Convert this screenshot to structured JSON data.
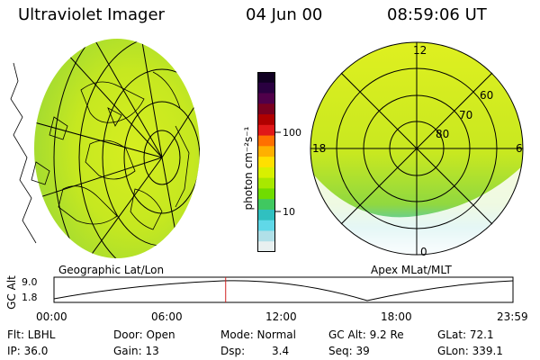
{
  "header": {
    "title": "Ultraviolet Imager",
    "date": "04 Jun 00",
    "time": "08:59:06 UT"
  },
  "left_panel": {
    "caption": "Geographic Lat/Lon"
  },
  "right_panel": {
    "caption": "Apex MLat/MLT",
    "mlt_labels": {
      "top": "12",
      "left": "18",
      "right": "6",
      "bottom": "0"
    },
    "lat_labels": [
      "60",
      "70",
      "80"
    ]
  },
  "colorbar": {
    "unit_label": "photon cm⁻²s⁻¹",
    "tick_labels": [
      "100",
      "10"
    ],
    "colors": [
      "#110022",
      "#2a0040",
      "#50004a",
      "#7a0020",
      "#b00000",
      "#e01818",
      "#ff7000",
      "#ffb000",
      "#ffe000",
      "#d8f000",
      "#a8e800",
      "#70dc00",
      "#40c860",
      "#30c0c0",
      "#60d8e8",
      "#b0e0e8",
      "#e8f0f0"
    ]
  },
  "timeline": {
    "axis_label": "GC Alt",
    "y_ticks": [
      "9.0",
      "1.8"
    ],
    "x_ticks": [
      "00:00",
      "06:00",
      "12:00",
      "18:00",
      "23:59"
    ],
    "current_time_fraction": 0.374
  },
  "info": {
    "row1": {
      "flt": "Flt: LBHL",
      "door": "Door: Open",
      "mode": "Mode: Normal",
      "gcalt": "GC Alt: 9.2 Re",
      "glat": "GLat: 72.1"
    },
    "row2": {
      "ip": "IP: 36.0",
      "gain": "Gain: 13",
      "dsp": "Dsp:",
      "dsp_val": "3.4",
      "seq": "Seq: 39",
      "glon": "GLon: 339.1"
    }
  }
}
